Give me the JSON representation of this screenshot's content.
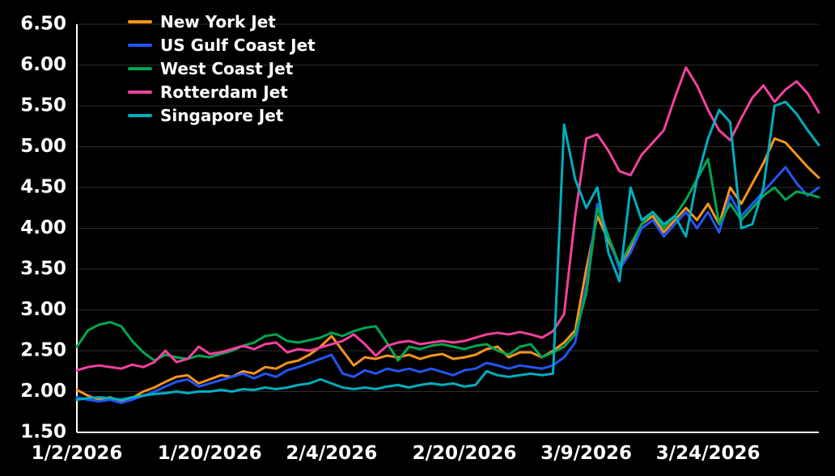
{
  "chart_data": {
    "type": "line",
    "title": "",
    "xlabel": "",
    "ylabel": "",
    "background_color": "#000000",
    "axis_color": "#ffffff",
    "grid_color": "#2e2e2e",
    "grid": true,
    "legend_position": "top-left",
    "ylim": [
      1.5,
      6.5
    ],
    "y_tick_step": 0.5,
    "y_tick_labels": [
      "1.50",
      "2.00",
      "2.50",
      "3.00",
      "3.50",
      "4.00",
      "4.50",
      "5.00",
      "5.50",
      "6.00",
      "6.50"
    ],
    "x_tick_labels": [
      "1/2/2026",
      "1/20/2026",
      "2/4/2026",
      "2/20/2026",
      "3/9/2026",
      "3/24/2026"
    ],
    "x_tick_indices": [
      0,
      12,
      23,
      35,
      46,
      57
    ],
    "x_dates": [
      "1/2",
      "1/5",
      "1/6",
      "1/7",
      "1/8",
      "1/9",
      "1/12",
      "1/13",
      "1/14",
      "1/15",
      "1/16",
      "1/19",
      "1/20",
      "1/21",
      "1/22",
      "1/23",
      "1/26",
      "1/27",
      "1/28",
      "1/29",
      "1/30",
      "2/2",
      "2/3",
      "2/4",
      "2/5",
      "2/6",
      "2/9",
      "2/10",
      "2/11",
      "2/12",
      "2/13",
      "2/16",
      "2/17",
      "2/18",
      "2/19",
      "2/20",
      "2/23",
      "2/24",
      "2/25",
      "2/26",
      "2/27",
      "3/2",
      "3/3",
      "3/4",
      "3/5",
      "3/6",
      "3/9",
      "3/10",
      "3/11",
      "3/12",
      "3/13",
      "3/16",
      "3/17",
      "3/18",
      "3/19",
      "3/20",
      "3/23",
      "3/24",
      "3/25",
      "3/26",
      "3/27",
      "3/30",
      "3/31",
      "4/1",
      "4/2",
      "4/3",
      "4/6",
      "4/7"
    ],
    "series": [
      {
        "name": "New York Jet",
        "color": "#F7941E",
        "values": [
          2.02,
          1.95,
          1.9,
          1.93,
          1.88,
          1.92,
          2.0,
          2.05,
          2.12,
          2.18,
          2.2,
          2.1,
          2.15,
          2.2,
          2.18,
          2.25,
          2.22,
          2.3,
          2.28,
          2.35,
          2.38,
          2.45,
          2.55,
          2.68,
          2.5,
          2.32,
          2.42,
          2.4,
          2.44,
          2.42,
          2.45,
          2.4,
          2.44,
          2.46,
          2.4,
          2.42,
          2.45,
          2.52,
          2.55,
          2.42,
          2.48,
          2.48,
          2.42,
          2.5,
          2.6,
          2.75,
          3.5,
          4.15,
          3.85,
          3.55,
          3.75,
          4.05,
          4.15,
          3.95,
          4.1,
          4.25,
          4.1,
          4.3,
          4.05,
          4.5,
          4.3,
          4.55,
          4.8,
          5.1,
          5.05,
          4.9,
          4.75,
          4.62
        ]
      },
      {
        "name": "US Gulf Coast Jet",
        "color": "#2255F4",
        "values": [
          1.93,
          1.9,
          1.88,
          1.9,
          1.86,
          1.9,
          1.95,
          2.0,
          2.06,
          2.12,
          2.15,
          2.06,
          2.1,
          2.14,
          2.18,
          2.22,
          2.16,
          2.22,
          2.18,
          2.26,
          2.3,
          2.35,
          2.4,
          2.45,
          2.22,
          2.18,
          2.26,
          2.22,
          2.28,
          2.25,
          2.28,
          2.24,
          2.28,
          2.24,
          2.2,
          2.26,
          2.28,
          2.35,
          2.32,
          2.28,
          2.32,
          2.3,
          2.28,
          2.32,
          2.42,
          2.6,
          3.3,
          4.3,
          3.9,
          3.5,
          3.7,
          4.0,
          4.1,
          3.9,
          4.05,
          4.2,
          4.0,
          4.2,
          3.95,
          4.4,
          4.15,
          4.3,
          4.45,
          4.6,
          4.75,
          4.55,
          4.4,
          4.5
        ]
      },
      {
        "name": "West Coast Jet",
        "color": "#00A651",
        "values": [
          2.55,
          2.75,
          2.82,
          2.85,
          2.8,
          2.62,
          2.48,
          2.38,
          2.45,
          2.42,
          2.4,
          2.44,
          2.42,
          2.46,
          2.5,
          2.56,
          2.6,
          2.68,
          2.7,
          2.62,
          2.6,
          2.63,
          2.66,
          2.72,
          2.68,
          2.74,
          2.78,
          2.8,
          2.6,
          2.38,
          2.55,
          2.52,
          2.56,
          2.58,
          2.55,
          2.52,
          2.56,
          2.58,
          2.5,
          2.45,
          2.55,
          2.58,
          2.42,
          2.48,
          2.55,
          2.7,
          3.2,
          4.25,
          3.9,
          3.55,
          3.8,
          4.05,
          4.2,
          4.0,
          4.15,
          4.35,
          4.6,
          4.85,
          4.05,
          4.3,
          4.1,
          4.25,
          4.4,
          4.5,
          4.35,
          4.45,
          4.42,
          4.38
        ]
      },
      {
        "name": "Rotterdam Jet",
        "color": "#F4419E",
        "values": [
          2.26,
          2.3,
          2.32,
          2.3,
          2.28,
          2.33,
          2.3,
          2.36,
          2.5,
          2.36,
          2.4,
          2.55,
          2.46,
          2.48,
          2.52,
          2.56,
          2.52,
          2.58,
          2.6,
          2.48,
          2.52,
          2.5,
          2.54,
          2.58,
          2.62,
          2.7,
          2.58,
          2.44,
          2.56,
          2.6,
          2.62,
          2.58,
          2.6,
          2.62,
          2.6,
          2.62,
          2.66,
          2.7,
          2.72,
          2.7,
          2.73,
          2.7,
          2.66,
          2.74,
          2.95,
          4.15,
          5.1,
          5.15,
          4.95,
          4.7,
          4.65,
          4.9,
          5.05,
          5.2,
          5.6,
          5.97,
          5.75,
          5.45,
          5.2,
          5.08,
          5.35,
          5.6,
          5.75,
          5.55,
          5.7,
          5.8,
          5.65,
          5.42
        ]
      },
      {
        "name": "Singapore Jet",
        "color": "#00AEBD",
        "values": [
          1.9,
          1.92,
          1.93,
          1.92,
          1.9,
          1.93,
          1.95,
          1.97,
          1.98,
          2.0,
          1.98,
          2.0,
          2.0,
          2.02,
          2.0,
          2.03,
          2.02,
          2.05,
          2.03,
          2.05,
          2.08,
          2.1,
          2.15,
          2.1,
          2.05,
          2.03,
          2.05,
          2.03,
          2.06,
          2.08,
          2.05,
          2.08,
          2.1,
          2.08,
          2.1,
          2.06,
          2.08,
          2.25,
          2.2,
          2.18,
          2.2,
          2.22,
          2.2,
          2.22,
          5.27,
          4.6,
          4.25,
          4.5,
          3.7,
          3.35,
          4.5,
          4.1,
          4.2,
          4.05,
          4.15,
          3.9,
          4.6,
          5.1,
          5.45,
          5.3,
          4.0,
          4.05,
          4.5,
          5.5,
          5.55,
          5.4,
          5.2,
          5.02
        ]
      }
    ]
  }
}
